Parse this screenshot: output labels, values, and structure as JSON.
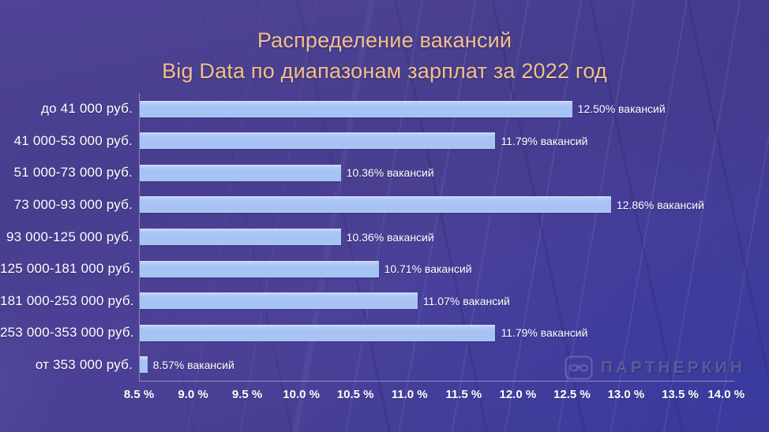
{
  "title": {
    "line1": "Распределение вакансий",
    "line2": "Big Data по диапазонам зарплат за 2022 год"
  },
  "chart_data": {
    "type": "bar",
    "orientation": "horizontal",
    "title": "Распределение вакансий Big Data по диапазонам зарплат за 2022 год",
    "categories": [
      "до 41 000 руб.",
      "41 000-53 000 руб.",
      "51 000-73 000 руб.",
      "73 000-93 000 руб.",
      "93 000-125 000 руб.",
      "125 000-181 000 руб.",
      "181 000-253 000 руб.",
      "253 000-353 000 руб.",
      "от 353 000 руб."
    ],
    "values": [
      12.5,
      11.79,
      10.36,
      12.86,
      10.36,
      10.71,
      11.07,
      11.79,
      8.57
    ],
    "value_labels": [
      "12.50% вакансий",
      "11.79% вакансий",
      "10.36% вакансий",
      "12.86% вакансий",
      "10.36% вакансий",
      "10.71% вакансий",
      "11.07% вакансий",
      "11.79% вакансий",
      "8.57% вакансий"
    ],
    "xlim": [
      8.5,
      14.0
    ],
    "x_tick_step": 0.5,
    "x_tick_labels": [
      "8.5 %",
      "9.0 %",
      "9.5 %",
      "10.0 %",
      "10.5 %",
      "11.0 %",
      "11.5 %",
      "12.0 %",
      "12.5 %",
      "13.0 %",
      "13.5 %",
      "14.0 %"
    ],
    "grid": "off",
    "legend": "none"
  },
  "watermark": {
    "text": "ПАРТНЕРКИН",
    "icon": "glasses-logo-icon"
  },
  "colors": {
    "background": "#4a4092",
    "title": "#f2c088",
    "bar": "#a7c3f4",
    "text": "#ffffff"
  }
}
